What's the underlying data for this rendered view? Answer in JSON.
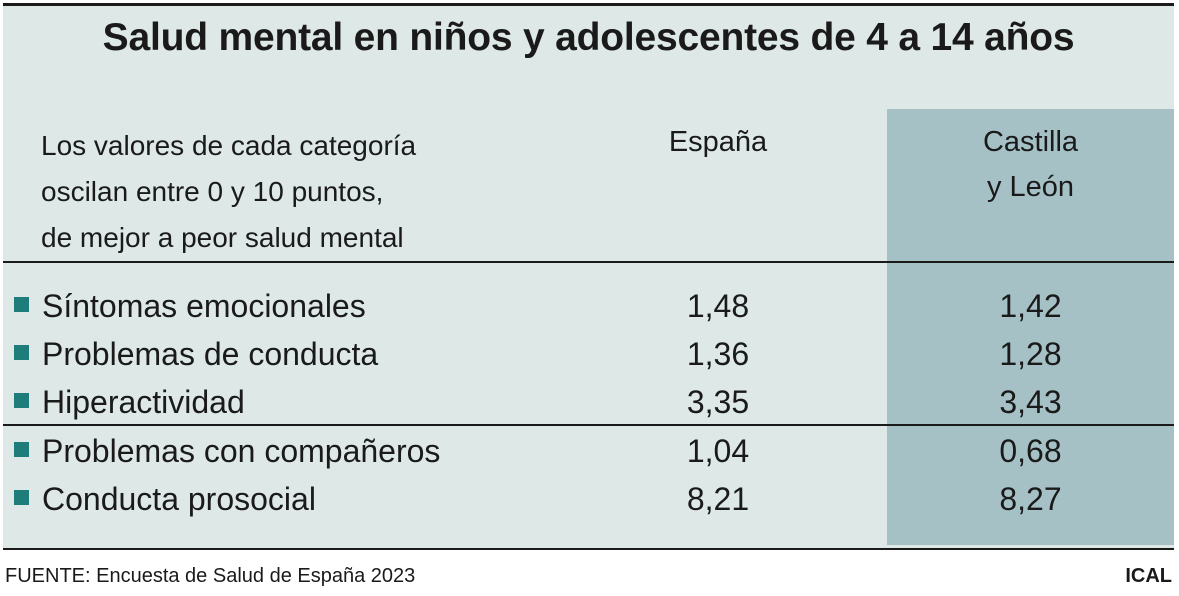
{
  "chart_data": {
    "type": "table",
    "title": "Salud mental en niños y adolescentes de 4 a 14 años",
    "note_lines": [
      "Los valores de cada categoría",
      "oscilan entre 0 y 10 puntos,",
      "de mejor a peor salud mental"
    ],
    "columns": [
      {
        "name_lines": [
          "España"
        ]
      },
      {
        "name_lines": [
          "Castilla",
          "y León"
        ]
      }
    ],
    "rows": [
      {
        "label": "Síntomas emocionales",
        "values": [
          "1,48",
          "1,42"
        ]
      },
      {
        "label": "Problemas de conducta",
        "values": [
          "1,36",
          "1,28"
        ]
      },
      {
        "label": "Hiperactividad",
        "values": [
          "3,35",
          "3,43"
        ]
      },
      {
        "label": "Problemas con compañeros",
        "values": [
          "1,04",
          "0,68"
        ]
      },
      {
        "label": "Conducta prosocial",
        "values": [
          "8,21",
          "8,27"
        ]
      }
    ],
    "source": "FUENTE: Encuesta de Salud de España 2023",
    "brand": "ICAL",
    "colors": {
      "panel": "#dde8e7",
      "highlight_column": "#a6c1c6",
      "bullet": "#1e7d7a"
    }
  }
}
